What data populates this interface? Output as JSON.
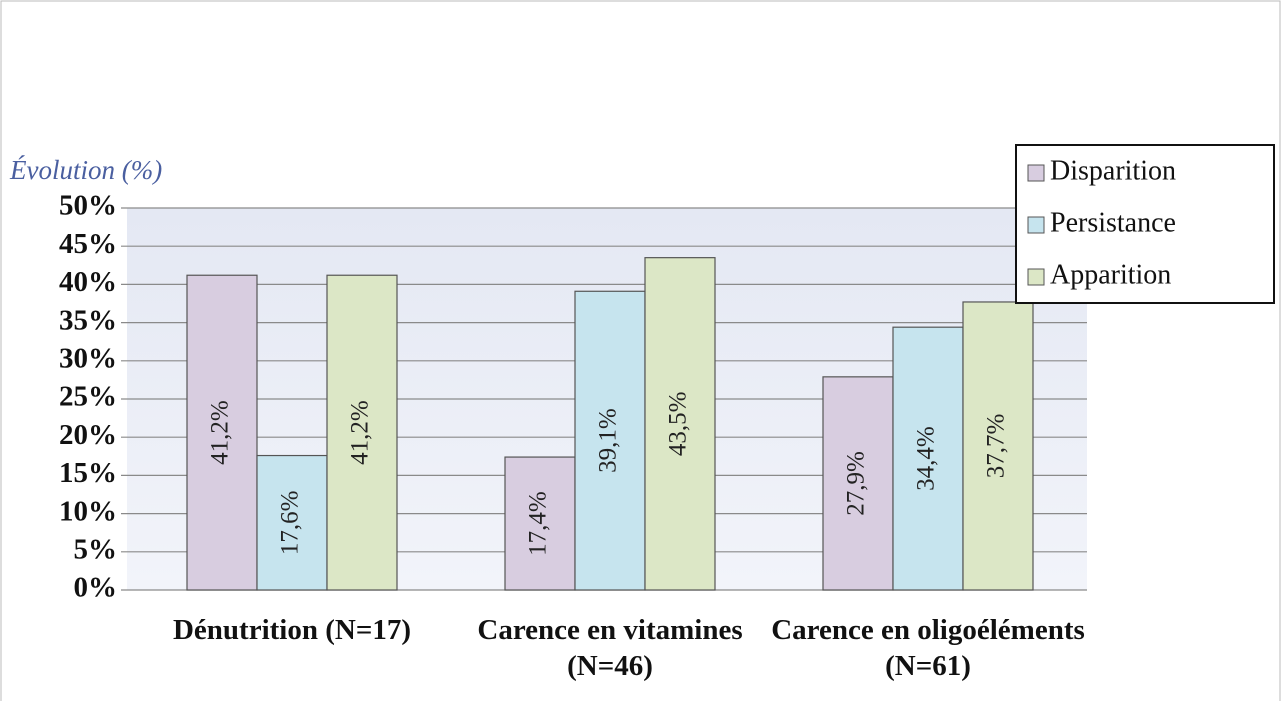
{
  "chart_data": {
    "type": "bar",
    "y_axis_label": "Évolution (%)",
    "categories": [
      "Dénutrition (N=17)",
      "Carence en vitamines (N=46)",
      "Carence en oligoéléments (N=61)"
    ],
    "series": [
      {
        "name": "Disparition",
        "color": "#d8cde0",
        "values": [
          41.2,
          17.4,
          27.9
        ],
        "value_labels": [
          "41,2%",
          "17,4%",
          "27,9%"
        ]
      },
      {
        "name": "Persistance",
        "color": "#c6e4ee",
        "values": [
          17.6,
          39.1,
          34.4
        ],
        "value_labels": [
          "17,6%",
          "39,1%",
          "34,4%"
        ]
      },
      {
        "name": "Apparition",
        "color": "#dce7c6",
        "values": [
          41.2,
          43.5,
          37.7
        ],
        "value_labels": [
          "41,2%",
          "43,5%",
          "37,7%"
        ]
      }
    ],
    "ylim": [
      0,
      50
    ],
    "yticks": [
      {
        "value": 0,
        "label": "0%"
      },
      {
        "value": 5,
        "label": "5%"
      },
      {
        "value": 10,
        "label": "10%"
      },
      {
        "value": 15,
        "label": "15%"
      },
      {
        "value": 20,
        "label": "20%"
      },
      {
        "value": 25,
        "label": "25%"
      },
      {
        "value": 30,
        "label": "30%"
      },
      {
        "value": 35,
        "label": "35%"
      },
      {
        "value": 40,
        "label": "40%"
      },
      {
        "value": 45,
        "label": "45%"
      },
      {
        "value": 50,
        "label": "50%"
      }
    ],
    "grid": true,
    "legend": "upper right"
  }
}
